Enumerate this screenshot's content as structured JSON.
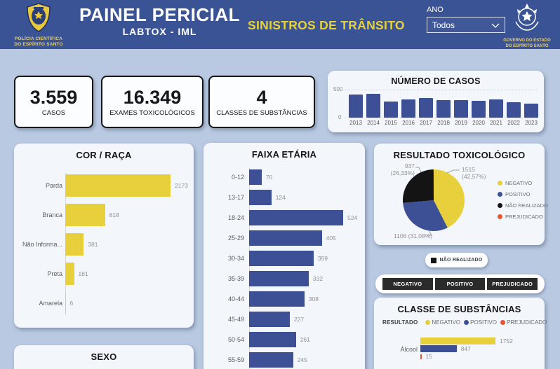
{
  "header": {
    "agency_line1": "POLÍCIA CIENTÍFICA",
    "agency_line2": "DO ESPÍRITO SANTO",
    "title": "PAINEL PERICIAL",
    "subtitle": "LABTOX - IML",
    "dashboard_title": "SINISTROS DE TRÂNSITO",
    "year_label": "ANO",
    "year_value": "Todos",
    "gov_line1": "GOVERNO DO ESTADO",
    "gov_line2": "DO ESPÍRITO SANTO"
  },
  "colors": {
    "header_bg": "#3a5394",
    "page_bg": "#b9c9e2",
    "yellow": "#e7d03c",
    "blue": "#3d5096",
    "black": "#141414",
    "orange": "#e8542e"
  },
  "stats": [
    {
      "value": "3.559",
      "label": "CASOS"
    },
    {
      "value": "16.349",
      "label": "EXAMES TOXICOLÓGICOS"
    },
    {
      "value": "4",
      "label": "CLASSES DE SUBSTÂNCIAS"
    }
  ],
  "chart_data": [
    {
      "id": "numero_de_casos",
      "type": "bar",
      "title": "NÚMERO DE CASOS",
      "categories": [
        "2013",
        "2014",
        "2015",
        "2016",
        "2017",
        "2018",
        "2019",
        "2020",
        "2021",
        "2022",
        "2023"
      ],
      "values": [
        410,
        430,
        285,
        330,
        350,
        310,
        315,
        300,
        320,
        270,
        245
      ],
      "ylim": [
        0,
        500
      ],
      "yticks": [
        "500",
        "0"
      ],
      "bar_color": "#3d5096"
    },
    {
      "id": "cor_raca",
      "type": "bar-horizontal",
      "title": "COR / RAÇA",
      "categories": [
        "Parda",
        "Branca",
        "Não Informa...",
        "Preta",
        "Amarela"
      ],
      "values": [
        2173,
        818,
        381,
        181,
        6
      ],
      "bar_color": "#e7d03c"
    },
    {
      "id": "faixa_etaria",
      "type": "bar-horizontal",
      "title": "FAIXA ETÁRIA",
      "categories": [
        "0-12",
        "13-17",
        "18-24",
        "25-29",
        "30-34",
        "35-39",
        "40-44",
        "45-49",
        "50-54",
        "55-59"
      ],
      "values": [
        70,
        124,
        524,
        405,
        359,
        332,
        308,
        227,
        261,
        245
      ],
      "bar_color": "#3d5096"
    },
    {
      "id": "resultado_toxicologico",
      "type": "pie",
      "title": "RESULTADO TOXICOLÓGICO",
      "slices": [
        {
          "label": "NEGATIVO",
          "value": "1515",
          "pct": "42,57%",
          "num": 1515,
          "color": "#e7d03c"
        },
        {
          "label": "POSITIVO",
          "value": "1106",
          "pct": "31,08%",
          "num": 1106,
          "color": "#3d5096"
        },
        {
          "label": "NÃO REALIZADO",
          "value": "937",
          "pct": "26,33%",
          "num": 937,
          "color": "#141414"
        },
        {
          "label": "PREJUDICADO",
          "value": "",
          "pct": "",
          "num": 1,
          "color": "#e8542e"
        }
      ],
      "legend_position": "right"
    },
    {
      "id": "classe_substancias",
      "type": "bar-horizontal-grouped",
      "title": "CLASSE DE SUBSTÂNCIAS",
      "legend_title": "RESULTADO",
      "series": [
        {
          "name": "NEGATIVO",
          "color": "#e7d03c"
        },
        {
          "name": "POSITIVO",
          "color": "#3d5096"
        },
        {
          "name": "PREJUDICADO",
          "color": "#e8542e"
        }
      ],
      "categories": [
        "Álcool"
      ],
      "values": [
        [
          1752,
          847,
          15
        ]
      ]
    }
  ],
  "filters": {
    "nao_realizado": "NÃO REALIZADO",
    "buttons": [
      "NEGATIVO",
      "POSITIVO",
      "PREJUDICADO"
    ]
  },
  "sexo": {
    "title": "SEXO"
  }
}
